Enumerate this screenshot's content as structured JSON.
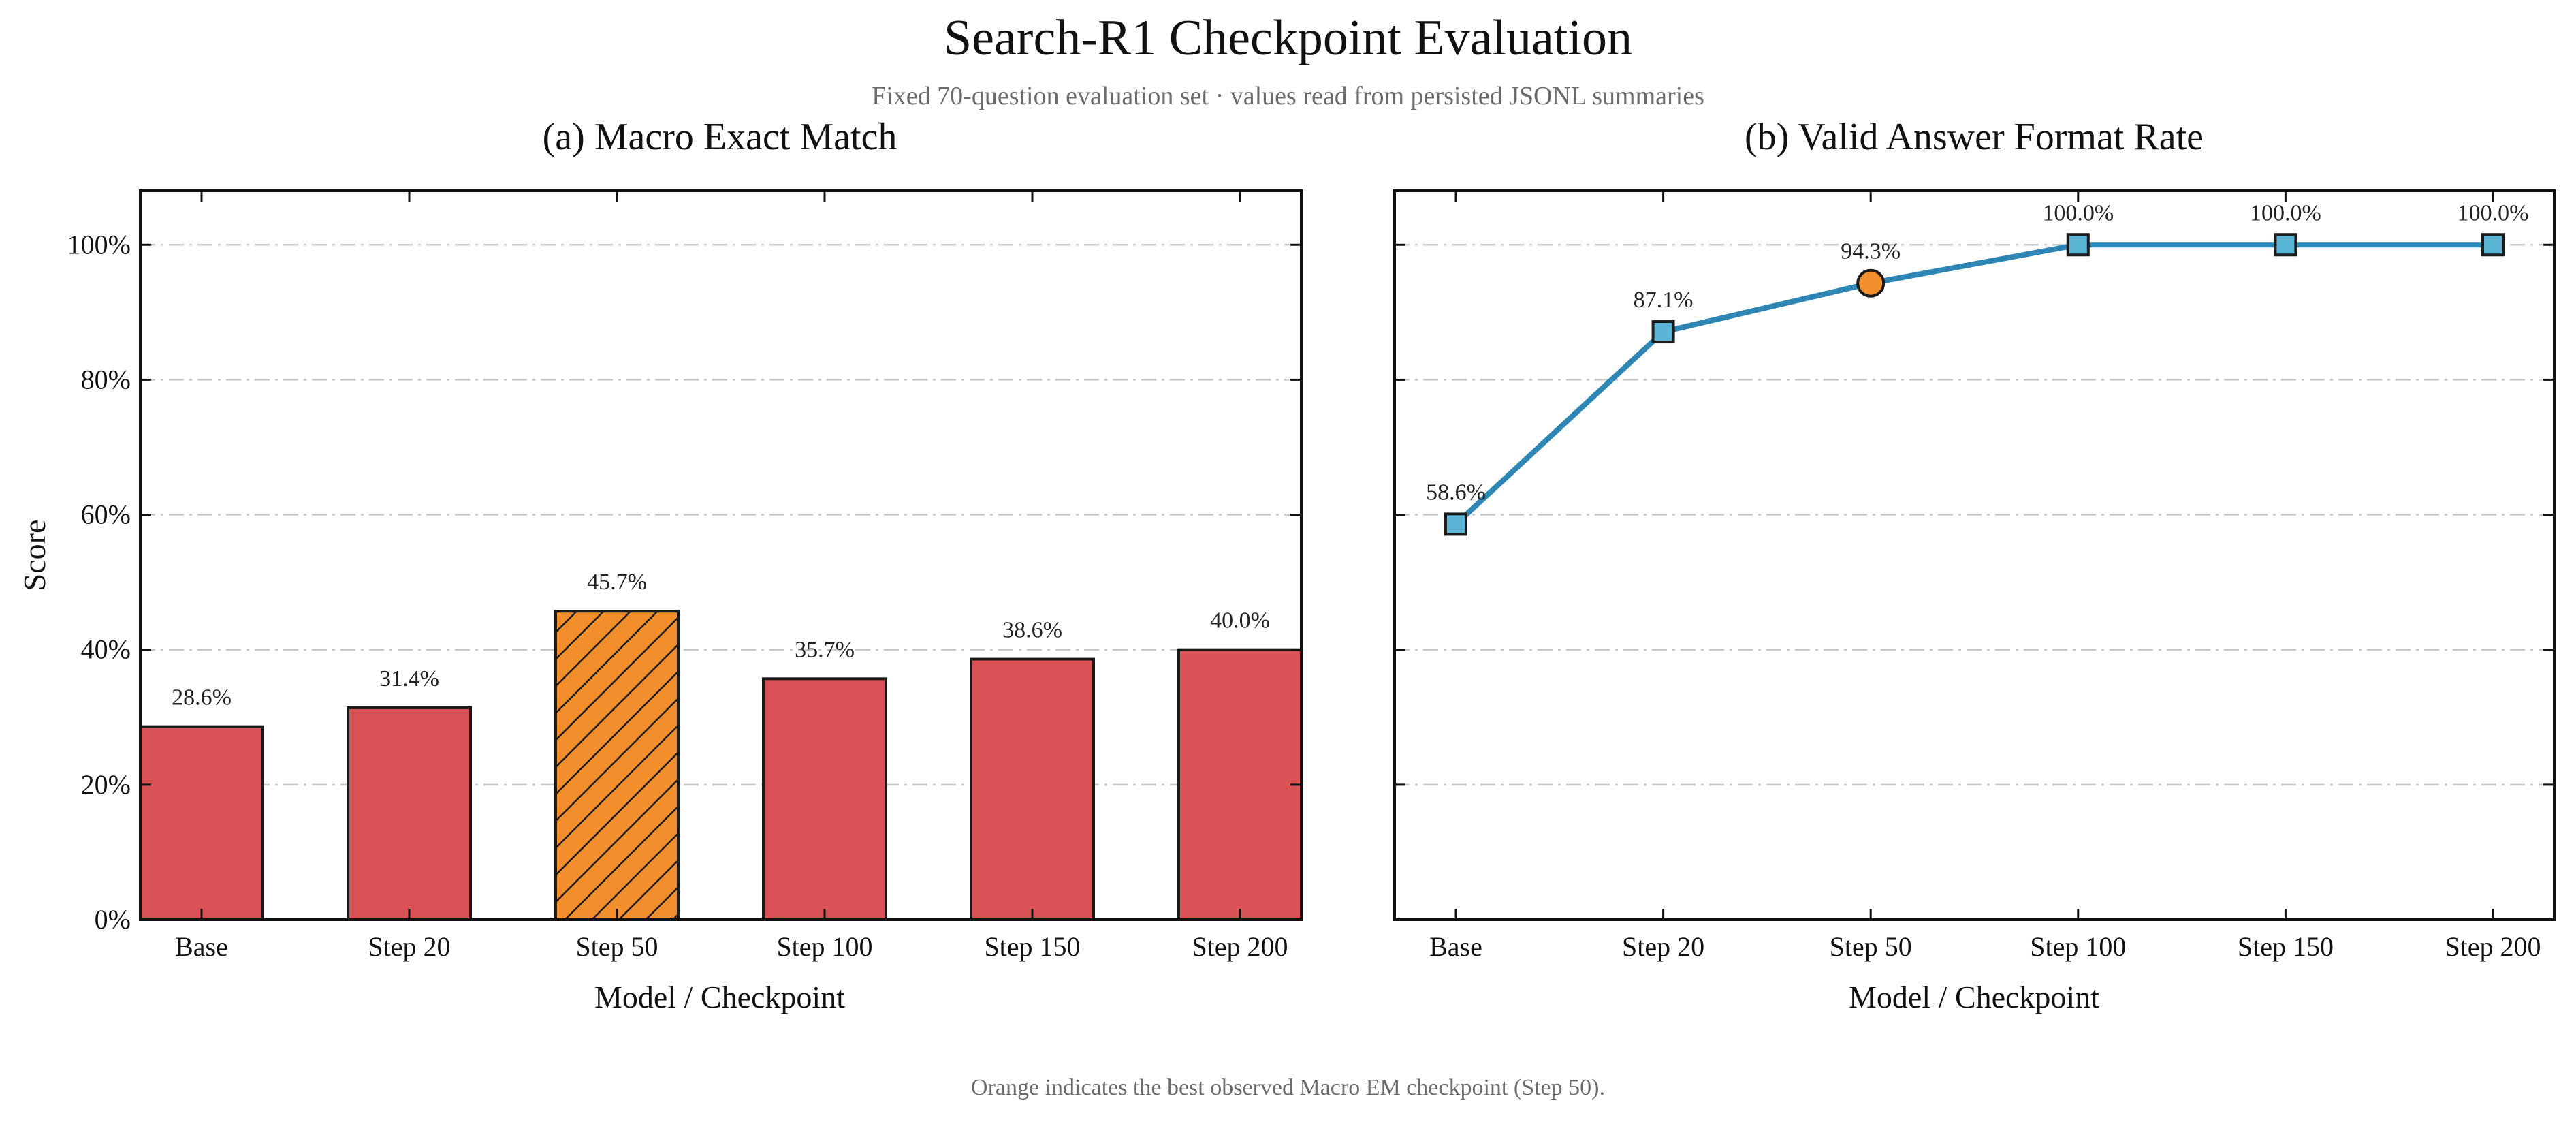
{
  "figure": {
    "title": "Search-R1 Checkpoint Evaluation",
    "subtitle": "Fixed 70-question evaluation set · values read from persisted JSONL summaries",
    "footnote": "Orange indicates the best observed Macro EM checkpoint (Step 50)."
  },
  "colors": {
    "bar": "#d95256",
    "highlight": "#f28e2b",
    "line": "#2e86b5",
    "marker": "#5ab4d6",
    "grid": "#c8c8c8",
    "subtitle_text": "#6b6b6b"
  },
  "chart_data": [
    {
      "type": "bar",
      "title": "(a) Macro Exact Match",
      "xlabel": "Model / Checkpoint",
      "ylabel": "Score",
      "categories": [
        "Base",
        "Step 20",
        "Step 50",
        "Step 100",
        "Step 150",
        "Step 200"
      ],
      "values": [
        28.6,
        31.4,
        45.7,
        35.7,
        38.6,
        40.0
      ],
      "value_labels": [
        "28.6%",
        "31.4%",
        "45.7%",
        "35.7%",
        "38.6%",
        "40.0%"
      ],
      "highlight_index": 2,
      "highlight_style": "orange, hatched",
      "ylim": [
        0,
        108
      ],
      "yticks": [
        0,
        20,
        40,
        60,
        80,
        100
      ],
      "ytick_labels": [
        "0%",
        "20%",
        "40%",
        "60%",
        "80%",
        "100%"
      ],
      "grid": "horizontal dash-dot"
    },
    {
      "type": "line",
      "title": "(b) Valid Answer Format Rate",
      "xlabel": "Model / Checkpoint",
      "categories": [
        "Base",
        "Step 20",
        "Step 50",
        "Step 100",
        "Step 150",
        "Step 200"
      ],
      "values": [
        58.6,
        87.1,
        94.3,
        100.0,
        100.0,
        100.0
      ],
      "value_labels": [
        "58.6%",
        "87.1%",
        "94.3%",
        "100.0%",
        "100.0%",
        "100.0%"
      ],
      "highlight_index": 2,
      "marker": "square",
      "highlight_marker": "circle",
      "ylim": [
        0,
        108
      ],
      "yticks": [
        0,
        20,
        40,
        60,
        80,
        100
      ],
      "grid": "horizontal dash-dot"
    }
  ]
}
